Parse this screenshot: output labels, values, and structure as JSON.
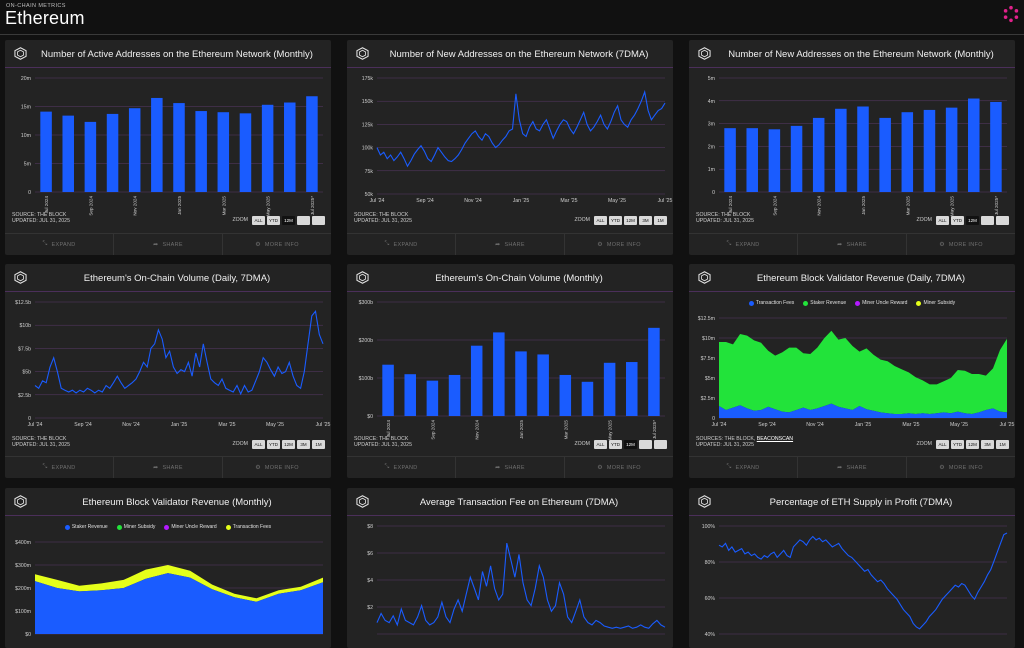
{
  "header": {
    "eyebrow": "ON-CHAIN METRICS",
    "title": "Ethereum"
  },
  "footer_labels": {
    "expand": "EXPAND",
    "share": "SHARE",
    "more": "MORE INFO"
  },
  "zoom_label": "ZOOM",
  "cards": [
    {
      "title": "Number of Active Addresses on the Ethereum Network (Monthly)",
      "source": "SOURCE: THE BLOCK",
      "updated": "UPDATED: JUL 31, 2025",
      "zoom": [
        "ALL",
        "YTD",
        "12M",
        "",
        ""
      ],
      "zoom_active": 2,
      "chart_data": {
        "type": "bar",
        "categories": [
          "Jul 2024",
          "Aug 2024",
          "Sep 2024",
          "Oct 2024",
          "Nov 2024",
          "Dec 2024",
          "Jan 2025",
          "Feb 2025",
          "Mar 2025",
          "Apr 2025",
          "May 2025",
          "Jun 2025",
          "Jul 2025*"
        ],
        "tick_labels": [
          "Jul 2024",
          "",
          "Sep 2024",
          "",
          "Nov 2024",
          "",
          "Jan 2025",
          "",
          "Mar 2025",
          "",
          "May 2025",
          "",
          "Jul 2025*"
        ],
        "values": [
          14.1,
          13.4,
          12.3,
          13.7,
          14.7,
          16.5,
          15.6,
          14.2,
          14.0,
          13.8,
          15.3,
          15.7,
          16.8
        ],
        "y_ticks": [
          "0",
          "5m",
          "10m",
          "15m",
          "20m"
        ],
        "ylim": [
          0,
          20
        ],
        "color": "#1a5cff"
      }
    },
    {
      "title": "Number of New Addresses on the Ethereum Network (7DMA)",
      "source": "SOURCE: THE BLOCK",
      "updated": "UPDATED: JUL 31, 2025",
      "zoom": [
        "ALL",
        "YTD",
        "12M",
        "3M",
        "1M"
      ],
      "zoom_active": -1,
      "chart_data": {
        "type": "line",
        "x_ticks": [
          "Jul '24",
          "Sep '24",
          "Nov '24",
          "Jan '25",
          "Mar '25",
          "May '25",
          "Jul '25"
        ],
        "values": [
          100,
          92,
          95,
          88,
          92,
          86,
          90,
          95,
          88,
          80,
          86,
          93,
          98,
          102,
          96,
          88,
          85,
          92,
          100,
          95,
          90,
          86,
          85,
          88,
          92,
          98,
          105,
          110,
          115,
          118,
          112,
          108,
          115,
          112,
          105,
          100,
          103,
          108,
          112,
          118,
          120,
          158,
          130,
          115,
          112,
          122,
          128,
          120,
          118,
          125,
          130,
          120,
          110,
          118,
          125,
          130,
          128,
          120,
          115,
          122,
          130,
          138,
          125,
          118,
          122,
          128,
          135,
          125,
          120,
          128,
          138,
          145,
          130,
          125,
          122,
          130,
          135,
          142,
          150,
          160,
          140,
          130,
          135,
          140,
          142,
          148
        ],
        "y_ticks": [
          "50k",
          "75k",
          "100k",
          "125k",
          "150k",
          "175k"
        ],
        "ylim": [
          50,
          175
        ],
        "color": "#1a5cff"
      }
    },
    {
      "title": "Number of New Addresses on the Ethereum Network (Monthly)",
      "source": "SOURCE: THE BLOCK",
      "updated": "UPDATED: JUL 31, 2025",
      "zoom": [
        "ALL",
        "YTD",
        "12M",
        "",
        ""
      ],
      "zoom_active": 2,
      "chart_data": {
        "type": "bar",
        "categories": [
          "Jul 2024",
          "Aug 2024",
          "Sep 2024",
          "Oct 2024",
          "Nov 2024",
          "Dec 2024",
          "Jan 2025",
          "Feb 2025",
          "Mar 2025",
          "Apr 2025",
          "May 2025",
          "Jun 2025",
          "Jul 2025*"
        ],
        "tick_labels": [
          "Jul 2024",
          "",
          "Sep 2024",
          "",
          "Nov 2024",
          "",
          "Jan 2025",
          "",
          "Mar 2025",
          "",
          "May 2025",
          "",
          "Jul 2025*"
        ],
        "values": [
          2.8,
          2.8,
          2.75,
          2.9,
          3.25,
          3.65,
          3.75,
          3.25,
          3.5,
          3.6,
          3.7,
          4.1,
          3.95
        ],
        "y_ticks": [
          "0",
          "1m",
          "2m",
          "3m",
          "4m",
          "5m"
        ],
        "ylim": [
          0,
          5
        ],
        "color": "#1a5cff"
      }
    },
    {
      "title": "Ethereum's On-Chain Volume (Daily, 7DMA)",
      "source": "SOURCE: THE BLOCK",
      "updated": "UPDATED: JUL 31, 2025",
      "zoom": [
        "ALL",
        "YTD",
        "12M",
        "3M",
        "1M"
      ],
      "zoom_active": -1,
      "chart_data": {
        "type": "line",
        "x_ticks": [
          "Jul '24",
          "Sep '24",
          "Nov '24",
          "Jan '25",
          "Mar '25",
          "May '25",
          "Jul '25"
        ],
        "values": [
          3.5,
          3.2,
          4.0,
          3.8,
          5.5,
          6.5,
          5.0,
          3.2,
          3.0,
          2.8,
          3.0,
          2.7,
          3.0,
          2.8,
          3.2,
          3.0,
          2.7,
          3.0,
          2.8,
          3.5,
          3.2,
          3.8,
          4.5,
          3.8,
          3.2,
          3.5,
          3.8,
          4.2,
          5.0,
          6.0,
          5.5,
          7.5,
          8.0,
          9.5,
          8.5,
          6.5,
          7.2,
          5.5,
          4.8,
          5.2,
          5.0,
          6.0,
          4.5,
          7.0,
          5.5,
          8.0,
          6.0,
          4.2,
          3.8,
          3.5,
          4.2,
          3.2,
          3.0,
          2.8,
          3.5,
          2.6,
          3.5,
          2.8,
          3.0,
          4.0,
          5.0,
          6.5,
          6.0,
          5.2,
          4.5,
          5.5,
          4.8,
          5.0,
          6.0,
          4.5,
          3.5,
          3.2,
          5.0,
          8.0,
          11.0,
          11.5,
          9.0,
          8.0
        ],
        "y_ticks": [
          "0",
          "$2.5b",
          "$5b",
          "$7.5b",
          "$10b",
          "$12.5b"
        ],
        "ylim": [
          0,
          12.5
        ],
        "color": "#1a5cff"
      }
    },
    {
      "title": "Ethereum's On-Chain Volume (Monthly)",
      "source": "SOURCE: THE BLOCK",
      "updated": "UPDATED: JUL 31, 2025",
      "zoom": [
        "ALL",
        "YTD",
        "12M",
        "",
        ""
      ],
      "zoom_active": 2,
      "chart_data": {
        "type": "bar",
        "categories": [
          "Jul 2024",
          "Aug 2024",
          "Sep 2024",
          "Oct 2024",
          "Nov 2024",
          "Dec 2024",
          "Jan 2025",
          "Feb 2025",
          "Mar 2025",
          "Apr 2025",
          "May 2025",
          "Jun 2025",
          "Jul 2025*"
        ],
        "tick_labels": [
          "Jul 2024",
          "",
          "Sep 2024",
          "",
          "Nov 2024",
          "",
          "Jan 2025",
          "",
          "Mar 2025",
          "",
          "May 2025",
          "",
          "Jul 2025*"
        ],
        "values": [
          135,
          110,
          93,
          108,
          185,
          220,
          170,
          162,
          108,
          90,
          140,
          142,
          232
        ],
        "y_ticks": [
          "$0",
          "$100b",
          "$200b",
          "$300b"
        ],
        "ylim": [
          0,
          300
        ],
        "color": "#1a5cff"
      }
    },
    {
      "title": "Ethereum Block Validator Revenue (Daily, 7DMA)",
      "source": "SOURCES: THE BLOCK, ",
      "source_link": "BEACONSCAN",
      "updated": "UPDATED: JUL 31, 2025",
      "zoom": [
        "ALL",
        "YTD",
        "12M",
        "3M",
        "1M"
      ],
      "zoom_active": -1,
      "chart_data": {
        "type": "area",
        "legend": [
          {
            "name": "Transaction Fees",
            "color": "#1a5cff"
          },
          {
            "name": "Staker Revenue",
            "color": "#22e33a"
          },
          {
            "name": "Miner Uncle Reward",
            "color": "#b31aff"
          },
          {
            "name": "Miner Subsidy",
            "color": "#e5ff1a"
          }
        ],
        "x_ticks": [
          "Jul '24",
          "Sep '24",
          "Nov '24",
          "Jan '25",
          "Mar '25",
          "May '25",
          "Jul '25"
        ],
        "series": [
          {
            "name": "Transaction Fees",
            "values": [
              1.5,
              1.0,
              1.3,
              1.6,
              1.2,
              0.9,
              1.0,
              1.4,
              1.1,
              0.8,
              0.7,
              1.0,
              1.3,
              1.0,
              1.2,
              1.5,
              1.8,
              1.4,
              1.2,
              1.0,
              1.5,
              1.1,
              0.9,
              0.7,
              0.6,
              0.5,
              0.5,
              0.6,
              0.5,
              0.6,
              0.5,
              0.6,
              0.7,
              0.6,
              0.8,
              0.6,
              0.5,
              0.7,
              1.0,
              1.2,
              0.8,
              0.7
            ]
          },
          {
            "name": "Staker Revenue",
            "values": [
              8.0,
              8.5,
              7.9,
              8.9,
              9.1,
              8.8,
              8.4,
              7.0,
              6.7,
              7.4,
              8.1,
              7.8,
              6.8,
              7.0,
              7.6,
              8.5,
              9.1,
              8.4,
              8.8,
              8.0,
              6.8,
              7.6,
              7.0,
              6.6,
              6.5,
              6.0,
              5.6,
              5.1,
              4.6,
              4.1,
              3.7,
              3.6,
              3.9,
              4.4,
              5.2,
              5.3,
              5.0,
              4.8,
              4.3,
              5.0,
              7.7,
              9.2
            ]
          }
        ],
        "y_ticks": [
          "0",
          "$2.5m",
          "$5m",
          "$7.5m",
          "$10m",
          "$12.5m"
        ],
        "ylim": [
          0,
          12.5
        ]
      }
    },
    {
      "title": "Ethereum Block Validator Revenue (Monthly)",
      "chart_data": {
        "type": "area",
        "legend": [
          {
            "name": "Staker Revenue",
            "color": "#1a5cff"
          },
          {
            "name": "Miner Subsidy",
            "color": "#22e33a"
          },
          {
            "name": "Miner Uncle Reward",
            "color": "#b31aff"
          },
          {
            "name": "Transaction Fees",
            "color": "#e5ff1a"
          }
        ],
        "series": [
          {
            "name": "Staker Revenue",
            "values": [
              230,
              200,
              185,
              190,
              200,
              240,
              265,
              245,
              195,
              160,
              140,
              175,
              190,
              225
            ]
          },
          {
            "name": "Transaction Fees",
            "values": [
              30,
              35,
              25,
              30,
              35,
              40,
              35,
              30,
              20,
              15,
              15,
              15,
              15,
              20
            ]
          }
        ],
        "y_ticks": [
          "$0",
          "$100m",
          "$200m",
          "$300m",
          "$400m"
        ],
        "ylim": [
          0,
          400
        ]
      }
    },
    {
      "title": "Average Transaction Fee on Ethereum (7DMA)",
      "chart_data": {
        "type": "line",
        "values": [
          1.0,
          1.8,
          1.2,
          1.0,
          1.6,
          0.8,
          2.2,
          1.2,
          1.0,
          0.8,
          1.5,
          2.5,
          1.2,
          0.8,
          1.0,
          1.5,
          2.8,
          1.5,
          1.0,
          2.2,
          3.0,
          2.0,
          3.5,
          5.0,
          4.0,
          3.0,
          5.5,
          4.2,
          6.0,
          4.0,
          3.0,
          3.5,
          8.0,
          6.5,
          5.0,
          7.0,
          4.5,
          3.0,
          2.5,
          4.0,
          6.0,
          5.0,
          3.0,
          2.0,
          2.5,
          4.5,
          3.5,
          1.5,
          1.0,
          2.0,
          3.0,
          1.5,
          1.0,
          0.8,
          1.2,
          1.0,
          0.7,
          0.6,
          0.5,
          0.6,
          0.5,
          0.6,
          0.7,
          0.5,
          0.6,
          0.8,
          0.6,
          0.5,
          0.9,
          1.2,
          0.8,
          0.6
        ],
        "y_ticks": [
          "",
          "$2",
          "$4",
          "$6",
          "$8"
        ],
        "ylim": [
          0,
          9.5
        ],
        "color": "#1a5cff"
      }
    },
    {
      "title": "Percentage of ETH Supply in Profit (7DMA)",
      "chart_data": {
        "type": "line",
        "values": [
          89,
          88,
          90,
          86,
          88,
          85,
          86,
          87,
          84,
          85,
          83,
          84,
          82,
          81,
          83,
          82,
          84,
          85,
          82,
          84,
          86,
          83,
          82,
          88,
          90,
          92,
          91,
          89,
          92,
          94,
          92,
          93,
          91,
          92,
          90,
          88,
          89,
          90,
          87,
          85,
          83,
          82,
          80,
          78,
          76,
          74,
          75,
          72,
          70,
          68,
          69,
          67,
          64,
          62,
          60,
          58,
          55,
          52,
          50,
          48,
          44,
          42,
          41,
          43,
          45,
          48,
          50,
          52,
          55,
          58,
          60,
          62,
          64,
          66,
          65,
          67,
          66,
          63,
          60,
          58,
          62,
          65,
          68,
          72,
          75,
          80,
          85,
          90,
          95,
          96
        ],
        "y_ticks": [
          "40%",
          "60%",
          "80%",
          "100%"
        ],
        "ylim": [
          38,
          100
        ],
        "color": "#1a5cff"
      }
    }
  ]
}
